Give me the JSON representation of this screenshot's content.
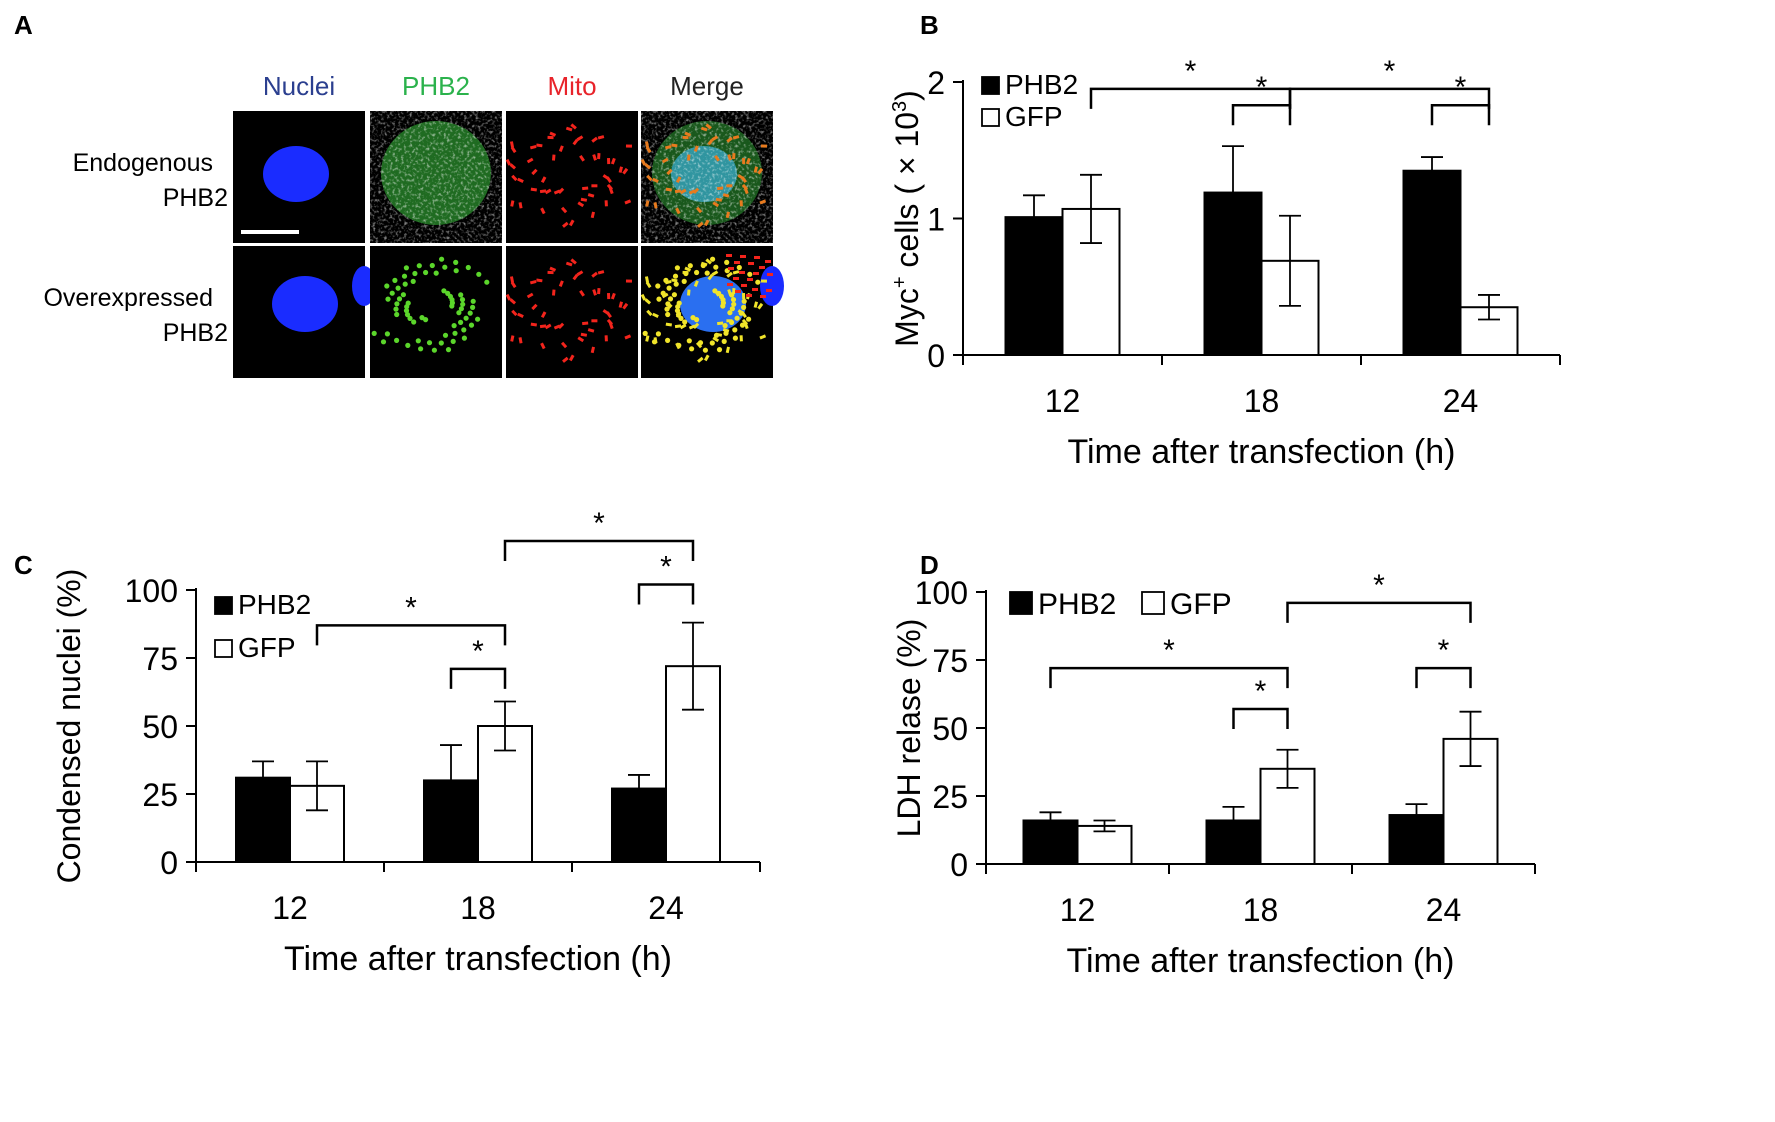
{
  "panels": [
    "A",
    "B",
    "C",
    "D"
  ],
  "micrograph": {
    "columns": [
      "Nuclei",
      "PHB2",
      "Mito",
      "Merge"
    ],
    "column_colors": [
      "#2b3f8f",
      "#2bb24c",
      "#e8232a",
      "#222222"
    ],
    "rows": [
      {
        "line1": "Endogenous",
        "line2": "PHB2"
      },
      {
        "line1": "Overexpressed",
        "line2": "PHB2"
      }
    ]
  },
  "chart_data": [
    {
      "panel": "B",
      "type": "bar",
      "categories": [
        "12",
        "18",
        "24"
      ],
      "series": [
        {
          "name": "PHB2",
          "values": [
            1.01,
            1.19,
            1.35
          ],
          "errors": [
            0.16,
            0.34,
            0.1
          ]
        },
        {
          "name": "GFP",
          "values": [
            1.07,
            0.69,
            0.35
          ],
          "errors": [
            0.25,
            0.33,
            0.09
          ]
        }
      ],
      "title": "",
      "xlabel": "Time after transfection (h)",
      "ylabel_pre": "Myc",
      "ylabel_sup": "+",
      "ylabel_mid": " cells ( × 10",
      "ylabel_sup2": "3",
      "ylabel_post": ")",
      "ylim": [
        0,
        2
      ],
      "yticks": [
        "0",
        "1",
        "2"
      ],
      "legend_position": "top-left",
      "significance": [
        {
          "from": [
            "12",
            "GFP"
          ],
          "to": [
            "18",
            "GFP"
          ],
          "label": "*",
          "level": 1.95
        },
        {
          "from": [
            "18",
            "PHB2"
          ],
          "to": [
            "18",
            "GFP"
          ],
          "label": "*",
          "level": 1.83
        },
        {
          "from": [
            "18",
            "GFP"
          ],
          "to": [
            "24",
            "GFP"
          ],
          "label": "*",
          "level": 1.95
        },
        {
          "from": [
            "24",
            "PHB2"
          ],
          "to": [
            "24",
            "GFP"
          ],
          "label": "*",
          "level": 1.83
        }
      ]
    },
    {
      "panel": "C",
      "type": "bar",
      "categories": [
        "12",
        "18",
        "24"
      ],
      "series": [
        {
          "name": "PHB2",
          "values": [
            31,
            30,
            27
          ],
          "errors": [
            6,
            13,
            5
          ]
        },
        {
          "name": "GFP",
          "values": [
            28,
            50,
            72
          ],
          "errors": [
            9,
            9,
            16
          ]
        }
      ],
      "title": "",
      "xlabel": "Time after transfection (h)",
      "ylabel": "Condensed nuclei (%)",
      "ylim": [
        0,
        100
      ],
      "yticks": [
        "0",
        "25",
        "50",
        "75",
        "100"
      ],
      "legend_position": "top-left",
      "significance": [
        {
          "from": [
            "12",
            "GFP"
          ],
          "to": [
            "18",
            "GFP"
          ],
          "label": "*",
          "level": 87
        },
        {
          "from": [
            "18",
            "PHB2"
          ],
          "to": [
            "18",
            "GFP"
          ],
          "label": "*",
          "level": 71
        },
        {
          "from": [
            "18",
            "GFP"
          ],
          "to": [
            "24",
            "GFP"
          ],
          "label": "*",
          "level": 118
        },
        {
          "from": [
            "24",
            "PHB2"
          ],
          "to": [
            "24",
            "GFP"
          ],
          "label": "*",
          "level": 102
        }
      ]
    },
    {
      "panel": "D",
      "type": "bar",
      "categories": [
        "12",
        "18",
        "24"
      ],
      "series": [
        {
          "name": "PHB2",
          "values": [
            16,
            16,
            18
          ],
          "errors": [
            3,
            5,
            4
          ]
        },
        {
          "name": "GFP",
          "values": [
            14,
            35,
            46
          ],
          "errors": [
            2,
            7,
            10
          ]
        }
      ],
      "title": "",
      "xlabel": "Time after transfection (h)",
      "ylabel": "LDH relase (%)",
      "ylim": [
        0,
        100
      ],
      "yticks": [
        "0",
        "25",
        "50",
        "75",
        "100"
      ],
      "legend_position": "top-left",
      "significance": [
        {
          "from": [
            "12",
            "PHB2"
          ],
          "to": [
            "18",
            "GFP"
          ],
          "label": "*",
          "level": 72
        },
        {
          "from": [
            "18",
            "PHB2"
          ],
          "to": [
            "18",
            "GFP"
          ],
          "label": "*",
          "level": 57
        },
        {
          "from": [
            "18",
            "GFP"
          ],
          "to": [
            "24",
            "GFP"
          ],
          "label": "*",
          "level": 96
        },
        {
          "from": [
            "24",
            "PHB2"
          ],
          "to": [
            "24",
            "GFP"
          ],
          "label": "*",
          "level": 72
        }
      ]
    }
  ]
}
